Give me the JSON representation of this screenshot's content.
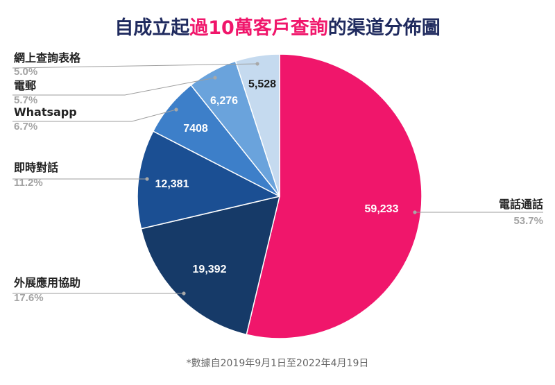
{
  "title": {
    "prefix": "自成立起",
    "highlight": "過10萬客戶查詢",
    "suffix": "的渠道分佈圖"
  },
  "footnote": "*數據自2019年9月1日至2022年4月19日",
  "chart_data": {
    "type": "pie",
    "title": "自成立起過10萬客戶查詢的渠道分佈圖",
    "slices": [
      {
        "label": "電話通話",
        "value": 59233,
        "value_label": "59,233",
        "pct_label": "53.7%",
        "color": "#f0166b"
      },
      {
        "label": "外展應用協助",
        "value": 19392,
        "value_label": "19,392",
        "pct_label": "17.6%",
        "color": "#163a68"
      },
      {
        "label": "即時對話",
        "value": 12381,
        "value_label": "12,381",
        "pct_label": "11.2%",
        "color": "#1b4f93"
      },
      {
        "label": "Whatsapp",
        "value": 7408,
        "value_label": "7408",
        "pct_label": "6.7%",
        "color": "#3d7fc9"
      },
      {
        "label": "電郵",
        "value": 6276,
        "value_label": "6,276",
        "pct_label": "5.7%",
        "color": "#6aa3dc"
      },
      {
        "label": "網上查詢表格",
        "value": 5528,
        "value_label": "5,528",
        "pct_label": "5.0%",
        "color": "#c5daef"
      }
    ]
  }
}
